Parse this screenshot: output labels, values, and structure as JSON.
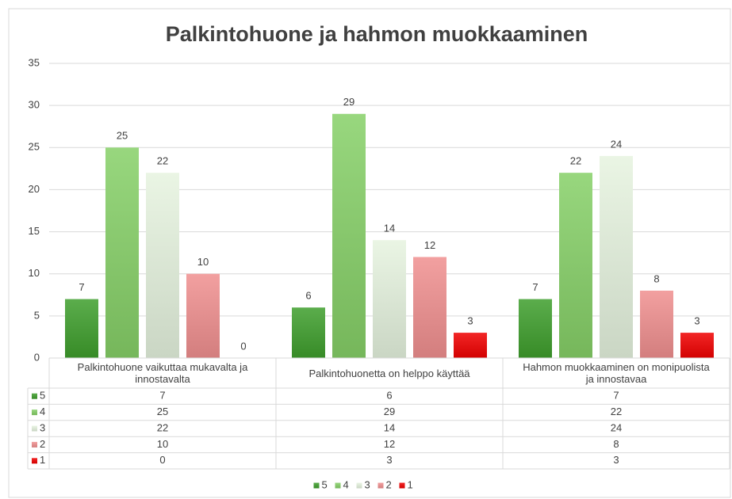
{
  "chart_data": {
    "type": "bar",
    "title": "Palkintohuone ja hahmon muokkaaminen",
    "categories": [
      "Palkintohuone vaikuttaa mukavalta ja innostavalta",
      "Palkintohuonetta on helppo käyttää",
      "Hahmon muokkaaminen on monipuolista ja innostavaa"
    ],
    "series": [
      {
        "name": "5",
        "color": "#3e9e2c",
        "values": [
          7,
          6,
          7
        ]
      },
      {
        "name": "4",
        "color": "#86d067",
        "values": [
          25,
          29,
          22
        ]
      },
      {
        "name": "3",
        "color": "#e6f3df",
        "values": [
          22,
          14,
          24
        ]
      },
      {
        "name": "2",
        "color": "#f08f8f",
        "values": [
          10,
          12,
          8
        ]
      },
      {
        "name": "1",
        "color": "#f00000",
        "values": [
          0,
          3,
          3
        ]
      }
    ],
    "ylim": [
      0,
      35
    ],
    "yticks": [
      0,
      5,
      10,
      15,
      20,
      25,
      30,
      35
    ],
    "grid": true,
    "legend": "bottom",
    "data_table": true
  }
}
